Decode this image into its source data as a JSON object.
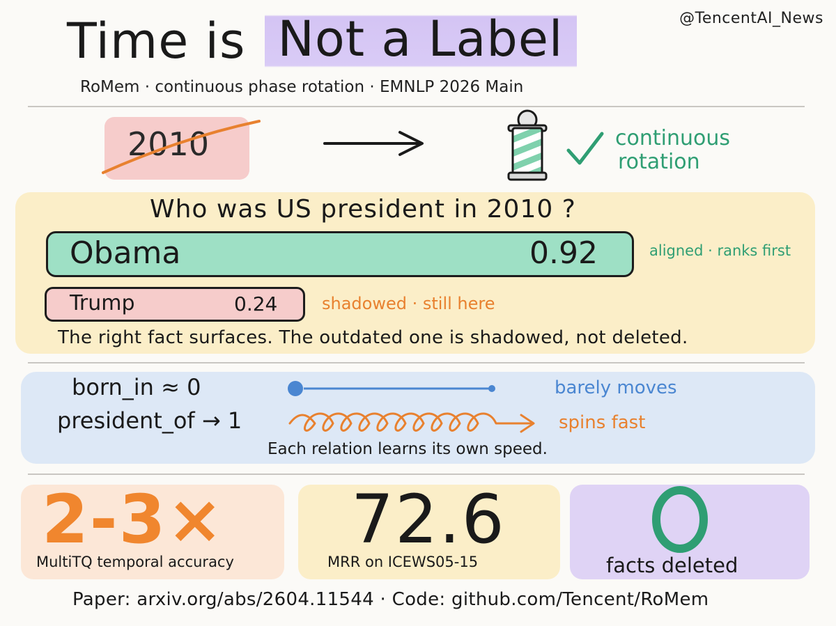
{
  "handle": "@TencentAI_News",
  "title": {
    "part1": "Time is",
    "part2": "Not a Label"
  },
  "subtitle": "RoMem · continuous phase rotation · EMNLP 2026 Main",
  "concept": {
    "struck_label": "2010",
    "result_label_line1": "continuous",
    "result_label_line2": "rotation"
  },
  "query_panel": {
    "question": "Who was US president in 2010 ?",
    "top_answer": {
      "name": "Obama",
      "score": "0.92",
      "note": "aligned · ranks first"
    },
    "second_answer": {
      "name": "Trump",
      "score": "0.24",
      "note": "shadowed · still here"
    },
    "caption": "The right fact surfaces. The outdated one is shadowed, not deleted."
  },
  "speed_panel": {
    "born_label": "born_in ≈ 0",
    "born_note": "barely moves",
    "president_label": "president_of → 1",
    "president_note": "spins fast",
    "caption": "Each relation learns its own speed."
  },
  "stats": [
    {
      "value": "2-3×",
      "label": "MultiTQ temporal accuracy"
    },
    {
      "value": "72.6",
      "label": "MRR on ICEWS05-15"
    },
    {
      "value": "0",
      "label": "facts deleted"
    }
  ],
  "footer": "Paper: arxiv.org/abs/2604.11544  ·  Code: github.com/Tencent/RoMem",
  "colors": {
    "green": "#2f9e73",
    "orange": "#e8812f",
    "blue": "#4a86d1",
    "lavender": "#d9cbf6",
    "pink": "#f6cccb",
    "yellow": "#fbeec8"
  },
  "icons": [
    "arrow-right-icon",
    "barber-pole-icon",
    "checkmark-icon",
    "spiral-icon",
    "zero-ring-icon"
  ]
}
